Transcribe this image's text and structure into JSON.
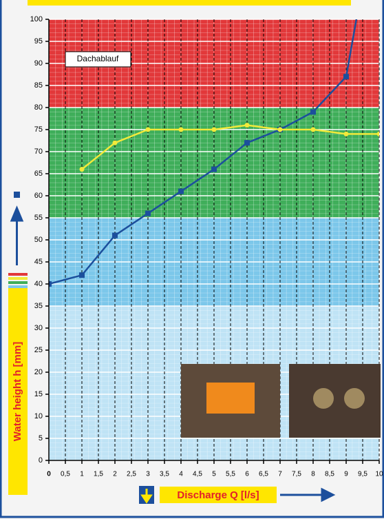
{
  "chart_data": {
    "type": "line",
    "x_label": "Discharge Q [l/s]",
    "y_label": "Water height h [mm]",
    "annotation": "Dachablauf",
    "xlim": [
      0,
      10
    ],
    "ylim": [
      0,
      100
    ],
    "xticks": [
      0,
      {
        "value": 0.5,
        "label": "0,5"
      },
      1,
      {
        "value": 1.5,
        "label": "1,5"
      },
      2,
      {
        "value": 2.5,
        "label": "2,5"
      },
      3,
      {
        "value": 3.5,
        "label": "3,5"
      },
      4,
      {
        "value": 4.5,
        "label": "4,5"
      },
      5,
      {
        "value": 5.5,
        "label": "5,5"
      },
      6,
      {
        "value": 6.5,
        "label": "6,5"
      },
      7,
      {
        "value": 7.5,
        "label": "7,5"
      },
      8,
      {
        "value": 8.5,
        "label": "8,5"
      },
      9,
      {
        "value": 9.5,
        "label": "9,5"
      },
      10
    ],
    "yticks": [
      0,
      5,
      10,
      15,
      20,
      25,
      30,
      35,
      40,
      45,
      50,
      55,
      60,
      65,
      70,
      75,
      80,
      85,
      90,
      95,
      100
    ],
    "bands": [
      {
        "from": 0,
        "to": 35,
        "color": "#bfe3f5"
      },
      {
        "from": 35,
        "to": 55,
        "color": "#7cc7ea"
      },
      {
        "from": 55,
        "to": 80,
        "color": "#3fae5a"
      },
      {
        "from": 80,
        "to": 100,
        "color": "#e2383a"
      }
    ],
    "series": [
      {
        "color": "#1c4f9c",
        "marker": "square",
        "x": [
          0,
          1,
          2,
          3,
          4,
          5,
          6,
          7,
          8,
          9,
          9.5
        ],
        "values": [
          40,
          42,
          51,
          56,
          61,
          66,
          72,
          75,
          79,
          87,
          108
        ]
      },
      {
        "color": "#f2ea3a",
        "marker": "circle",
        "x": [
          1,
          2,
          3,
          4,
          5,
          6,
          7,
          8,
          9,
          10
        ],
        "values": [
          66,
          72,
          75,
          75,
          75,
          76,
          75,
          75,
          74,
          74
        ]
      }
    ]
  }
}
